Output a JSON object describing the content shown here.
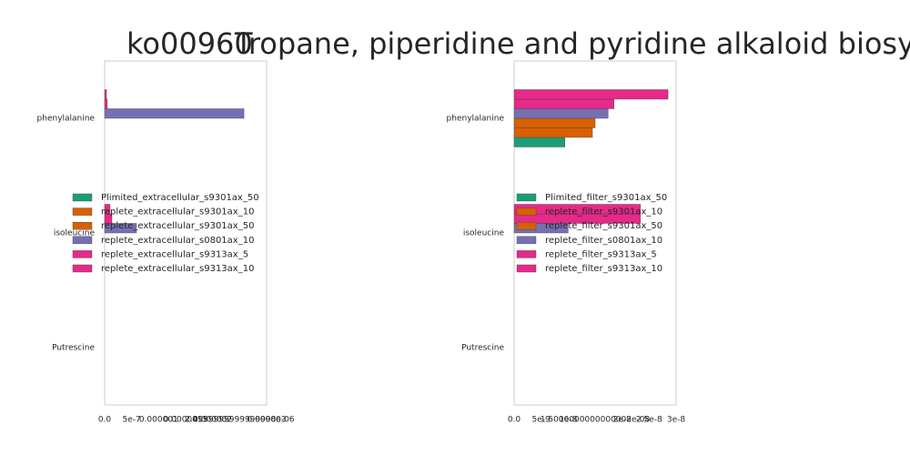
{
  "chart_data": [
    {
      "type": "barh",
      "title": "ko00960",
      "categories": [
        "phenylalanine",
        "isoleucine",
        "Putrescine"
      ],
      "series": [
        {
          "name": "Plimited_extracellular_s9301ax_50",
          "color": "#1b9e77",
          "values": [
            0,
            0,
            0
          ]
        },
        {
          "name": "replete_extracellular_s9301ax_10",
          "color": "#d95f02",
          "values": [
            0,
            0,
            0
          ]
        },
        {
          "name": "replete_extracellular_s9301ax_50",
          "color": "#d95f02",
          "values": [
            0,
            0,
            0
          ]
        },
        {
          "name": "replete_extracellular_s0801ax_10",
          "color": "#7570b3",
          "values": [
            2.58e-06,
            5.9e-07,
            0
          ]
        },
        {
          "name": "replete_extracellular_s9313ax_5",
          "color": "#e7298a",
          "values": [
            5e-08,
            1.35e-07,
            0
          ]
        },
        {
          "name": "replete_extracellular_s9313ax_10",
          "color": "#e7298a",
          "values": [
            3.4e-08,
            1e-07,
            0
          ]
        }
      ],
      "xlim": [
        0,
        3e-06
      ],
      "xticks": [
        {
          "value": 0,
          "label": "0.0"
        },
        5e-07,
        1e-06,
        1.5e-06,
        2e-06,
        {
          "value": 2.5e-06,
          "label": "2.4999999999999998e-06"
        },
        3e-06
      ],
      "legend": "center-left",
      "grid": false
    },
    {
      "type": "barh",
      "title": "Tropane, piperidine and pyridine alkaloid biosynthesis",
      "categories": [
        "phenylalanine",
        "isoleucine",
        "Putrescine"
      ],
      "series": [
        {
          "name": "Plimited_filter_s9301ax_50",
          "color": "#1b9e77",
          "values": [
            9.4e-09,
            0,
            0
          ]
        },
        {
          "name": "replete_filter_s9301ax_10",
          "color": "#d95f02",
          "values": [
            1.45e-08,
            0,
            0
          ]
        },
        {
          "name": "replete_filter_s9301ax_50",
          "color": "#d95f02",
          "values": [
            1.5e-08,
            0,
            0
          ]
        },
        {
          "name": "replete_filter_s0801ax_10",
          "color": "#7570b3",
          "values": [
            1.74e-08,
            1e-08,
            0
          ]
        },
        {
          "name": "replete_filter_s9313ax_5",
          "color": "#e7298a",
          "values": [
            1.85e-08,
            2.34e-08,
            0
          ]
        },
        {
          "name": "replete_filter_s9313ax_10",
          "color": "#e7298a",
          "values": [
            2.85e-08,
            2.34e-08,
            0
          ]
        }
      ],
      "xlim": [
        0,
        3e-08
      ],
      "xticks": [
        {
          "value": 0,
          "label": "0.0"
        },
        5e-09,
        1e-08,
        {
          "value": 1.5e-08,
          "label": "1.5000000000000002e-08"
        },
        2e-08,
        2.5e-08,
        3e-08
      ],
      "legend": "center-left",
      "grid": false
    }
  ]
}
